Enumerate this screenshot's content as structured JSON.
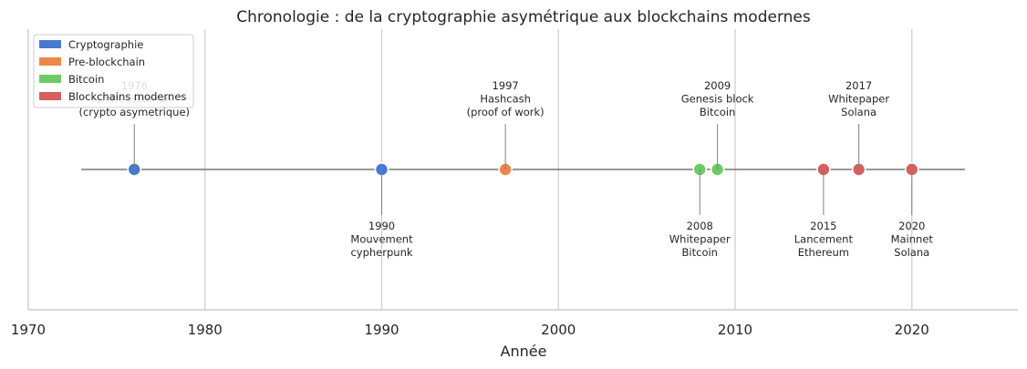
{
  "chart_data": {
    "type": "scatter",
    "title": "Chronologie : de la cryptographie asymétrique aux blockchains modernes",
    "xlabel": "Année",
    "ylabel": "",
    "xlim": [
      1970,
      2026
    ],
    "xticks": [
      1970,
      1980,
      1990,
      2000,
      2010,
      2020
    ],
    "timeline_span": [
      1973,
      2023
    ],
    "grid": "vertical",
    "legend_position": "top-left",
    "categories": [
      {
        "name": "Cryptographie",
        "color": "#4878d0"
      },
      {
        "name": "Pre-blockchain",
        "color": "#ee854a"
      },
      {
        "name": "Bitcoin",
        "color": "#6acc64"
      },
      {
        "name": "Blockchains modernes",
        "color": "#d65f5f"
      }
    ],
    "events": [
      {
        "year": 1976,
        "category": "Cryptographie",
        "side": "above",
        "lines": [
          "1976",
          "Diffie-Hellman",
          "(crypto asymetrique)"
        ]
      },
      {
        "year": 1990,
        "category": "Cryptographie",
        "side": "below",
        "lines": [
          "1990",
          "Mouvement",
          "cypherpunk"
        ]
      },
      {
        "year": 1997,
        "category": "Pre-blockchain",
        "side": "above",
        "lines": [
          "1997",
          "Hashcash",
          "(proof of work)"
        ]
      },
      {
        "year": 2008,
        "category": "Bitcoin",
        "side": "below",
        "lines": [
          "2008",
          "Whitepaper",
          "Bitcoin"
        ]
      },
      {
        "year": 2009,
        "category": "Bitcoin",
        "side": "above",
        "lines": [
          "2009",
          "Genesis block",
          "Bitcoin"
        ]
      },
      {
        "year": 2015,
        "category": "Blockchains modernes",
        "side": "below",
        "lines": [
          "2015",
          "Lancement",
          "Ethereum"
        ]
      },
      {
        "year": 2017,
        "category": "Blockchains modernes",
        "side": "above",
        "lines": [
          "2017",
          "Whitepaper",
          "Solana"
        ]
      },
      {
        "year": 2020,
        "category": "Blockchains modernes",
        "side": "below",
        "lines": [
          "2020",
          "Mainnet",
          "Solana"
        ]
      }
    ]
  }
}
